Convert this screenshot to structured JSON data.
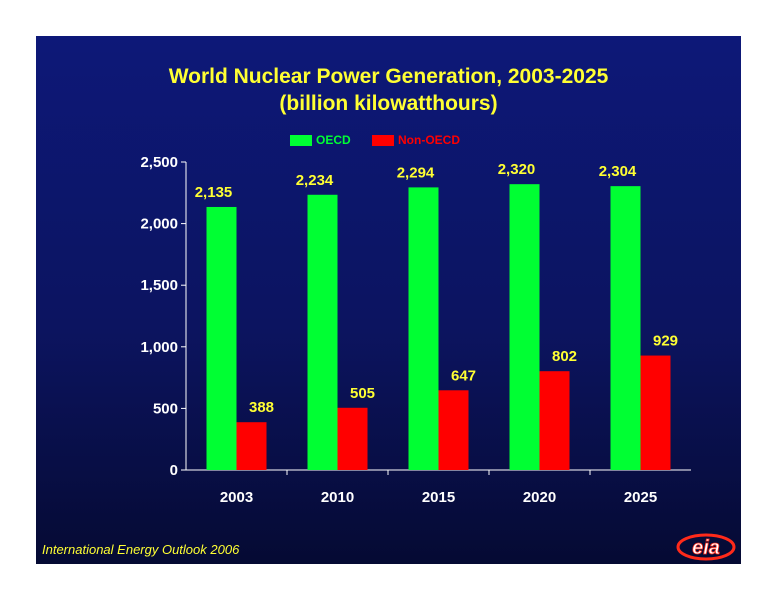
{
  "chart_data": {
    "type": "bar",
    "title": "World Nuclear Power Generation, 2003-2025",
    "subtitle": "(billion kilowatthours)",
    "categories": [
      "2003",
      "2010",
      "2015",
      "2020",
      "2025"
    ],
    "series": [
      {
        "name": "OECD",
        "color": "#00ff33",
        "values": [
          2135,
          2234,
          2294,
          2320,
          2304
        ],
        "labels": [
          "2,135",
          "2,234",
          "2,294",
          "2,320",
          "2,304"
        ]
      },
      {
        "name": "Non-OECD",
        "color": "#ff0000",
        "values": [
          388,
          505,
          647,
          802,
          929
        ],
        "labels": [
          "388",
          "505",
          "647",
          "802",
          "929"
        ]
      }
    ],
    "ylim": [
      0,
      2500
    ],
    "yticks": [
      0,
      500,
      1000,
      1500,
      2000,
      2500
    ],
    "ytick_labels": [
      "0",
      "500",
      "1,000",
      "1,500",
      "2,000",
      "2,500"
    ],
    "grid": false,
    "legend_position": "top"
  },
  "footer": "International Energy Outlook 2006",
  "logo_text": "eia",
  "colors": {
    "title": "#ffff33",
    "data_label": "#ffff33",
    "axis_text": "#ffffff",
    "background": "#0c1460"
  }
}
